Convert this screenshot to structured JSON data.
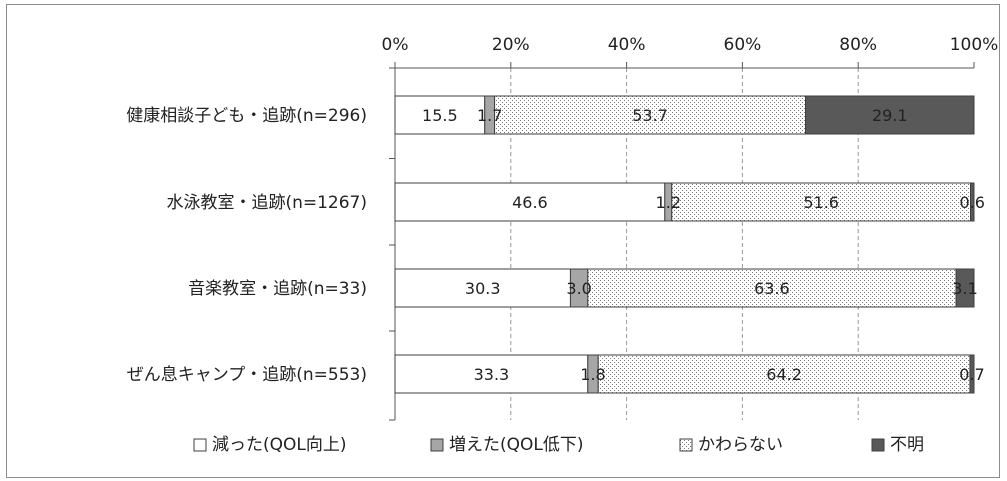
{
  "chart_data": {
    "type": "bar",
    "orientation": "horizontal",
    "stacked": true,
    "xlim": [
      0,
      100
    ],
    "x_ticks": [
      "0%",
      "20%",
      "40%",
      "60%",
      "80%",
      "100%"
    ],
    "x_tick_values": [
      0,
      20,
      40,
      60,
      80,
      100
    ],
    "grid": "vertical-dashed",
    "legend_position": "bottom",
    "categories": [
      "健康相談子ども・追跡(n=296)",
      "水泳教室・追跡(n=1267)",
      "音楽教室・追跡(n=33)",
      "ぜん息キャンプ・追跡(n=553)"
    ],
    "series": [
      {
        "name": "減った(QOL向上)",
        "color": "#ffffff",
        "pattern": "none",
        "values": [
          15.5,
          46.6,
          30.3,
          33.3
        ],
        "labels": [
          "15.5",
          "46.6",
          "30.3",
          "33.3"
        ]
      },
      {
        "name": "増えた(QOL低下)",
        "color": "#a6a6a6",
        "pattern": "none",
        "values": [
          1.7,
          1.2,
          3.0,
          1.8
        ],
        "labels": [
          "1.7",
          "1.2",
          "3.0",
          "1.8"
        ]
      },
      {
        "name": "かわらない",
        "color": "#ffffff",
        "pattern": "dots",
        "values": [
          53.7,
          51.6,
          63.6,
          64.2
        ],
        "labels": [
          "53.7",
          "51.6",
          "63.6",
          "64.2"
        ]
      },
      {
        "name": "不明",
        "color": "#595959",
        "pattern": "none",
        "values": [
          29.1,
          0.6,
          3.1,
          0.7
        ],
        "labels": [
          "29.1",
          "0.6",
          "3.1",
          "0.7"
        ]
      }
    ]
  }
}
